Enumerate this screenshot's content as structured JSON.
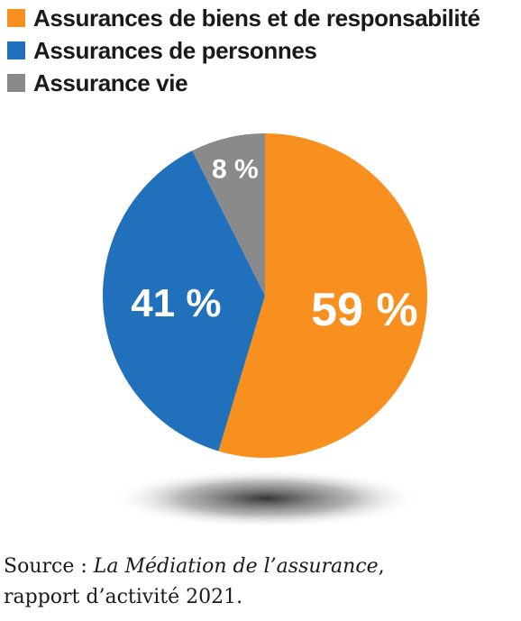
{
  "chart_data": {
    "type": "pie",
    "categories": [
      "Assurances de biens et de responsabilité",
      "Assurances de personnes",
      "Assurance vie"
    ],
    "values": [
      59,
      41,
      8
    ],
    "labels": [
      "59 %",
      "41 %",
      "8 %"
    ],
    "colors": [
      "#f7901e",
      "#2070bb",
      "#8a8a8a"
    ],
    "title": "",
    "legend": "top-left"
  },
  "source": {
    "prefix": "Source : ",
    "publication": "La Médiation de l’assurance",
    "suffix": ",",
    "line2": "rapport d’activité 2021."
  }
}
